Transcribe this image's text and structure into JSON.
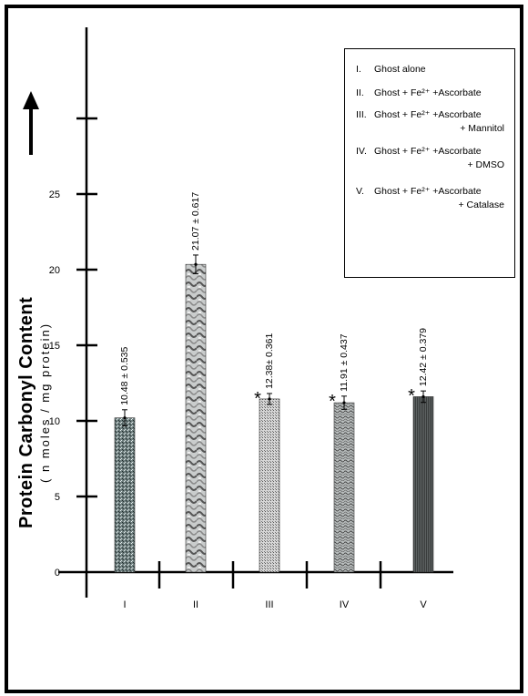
{
  "chart_data": {
    "type": "bar",
    "categories": [
      "I",
      "II",
      "III",
      "IV",
      "V"
    ],
    "values": [
      10.48,
      21.07,
      12.38,
      11.91,
      12.42
    ],
    "errors": [
      0.535,
      0.617,
      0.361,
      0.437,
      0.379
    ],
    "value_labels": [
      "10.48 ± 0.535",
      "21.07 ± 0.617",
      "12.38± 0.361",
      "11.91 ± 0.437",
      "12.42 ± 0.379"
    ],
    "significance": [
      "",
      "",
      "*",
      "*",
      "*"
    ],
    "ylabel": "Protein Carbonyl Content",
    "ylabel_units": "( n moles / mg protein)",
    "ylim": [
      0,
      30
    ],
    "yticks": [
      0,
      5,
      10,
      15,
      20,
      25
    ],
    "legend": [
      {
        "num": "I.",
        "line1": "Ghost alone",
        "line2": ""
      },
      {
        "num": "II.",
        "line1": "Ghost + Fe²⁺ +Ascorbate",
        "line2": ""
      },
      {
        "num": "III.",
        "line1": "Ghost + Fe²⁺ +Ascorbate",
        "line2": "+ Mannitol"
      },
      {
        "num": "IV.",
        "line1": "Ghost + Fe²⁺ +Ascorbate",
        "line2": "+ DMSO"
      },
      {
        "num": "V.",
        "line1": "Ghost + Fe²⁺ +Ascorbate",
        "line2": "+ Catalase"
      }
    ],
    "legend_position": "top-right"
  }
}
